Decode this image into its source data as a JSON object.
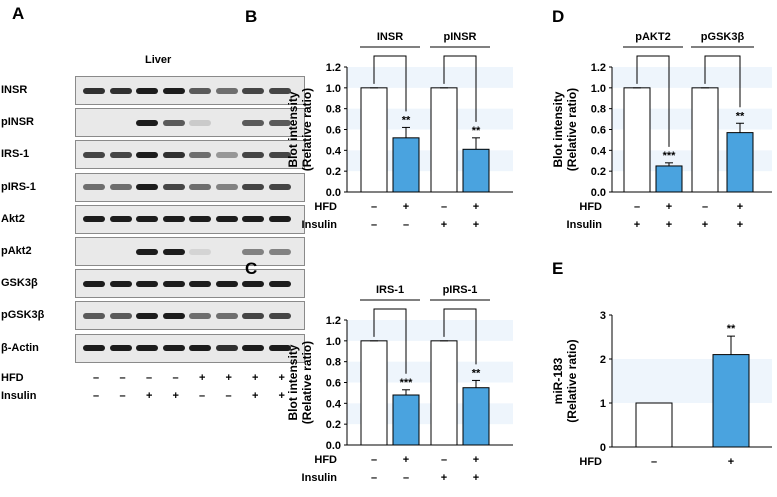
{
  "panelA": {
    "letter": "A",
    "tissue": "Liver",
    "rows": [
      {
        "name": "INSR",
        "levels": [
          0.9,
          0.9,
          1.0,
          1.0,
          0.7,
          0.6,
          0.8,
          0.8
        ]
      },
      {
        "name": "pINSR",
        "levels": [
          0.0,
          0.0,
          1.0,
          0.7,
          0.15,
          0.0,
          0.7,
          0.7
        ]
      },
      {
        "name": "IRS-1",
        "levels": [
          0.8,
          0.8,
          1.0,
          0.9,
          0.6,
          0.4,
          0.8,
          0.8
        ]
      },
      {
        "name": "pIRS-1",
        "levels": [
          0.6,
          0.6,
          1.0,
          0.8,
          0.6,
          0.5,
          0.8,
          0.8
        ]
      },
      {
        "name": "Akt2",
        "levels": [
          1.0,
          1.0,
          1.0,
          1.0,
          1.0,
          1.0,
          1.0,
          1.0
        ]
      },
      {
        "name": "pAkt2",
        "levels": [
          0.0,
          0.0,
          1.0,
          1.0,
          0.1,
          0.0,
          0.5,
          0.5
        ]
      },
      {
        "name": "GSK3β",
        "levels": [
          1.0,
          1.0,
          1.0,
          1.0,
          1.0,
          1.0,
          1.0,
          1.0
        ]
      },
      {
        "name": "pGSK3β",
        "levels": [
          0.7,
          0.7,
          1.0,
          1.0,
          0.6,
          0.6,
          0.8,
          0.8
        ]
      },
      {
        "name": "β-Actin",
        "levels": [
          1.0,
          1.0,
          1.0,
          1.0,
          1.0,
          0.9,
          1.0,
          1.0
        ]
      }
    ],
    "conditions": [
      {
        "name": "HFD",
        "signs": [
          "–",
          "–",
          "–",
          "–",
          "+",
          "+",
          "+",
          "+"
        ]
      },
      {
        "name": "Insulin",
        "signs": [
          "–",
          "–",
          "+",
          "+",
          "–",
          "–",
          "+",
          "+"
        ]
      }
    ]
  },
  "colors": {
    "control": "#ffffff",
    "hfd": "#4aa3df",
    "stripe": "#eef5fc"
  },
  "chart_data": [
    {
      "panel": "B",
      "type": "bar",
      "groups": [
        "INSR",
        "pINSR"
      ],
      "values": [
        1.0,
        0.52,
        1.0,
        0.41
      ],
      "errors": [
        0.0,
        0.1,
        0.0,
        0.11
      ],
      "significance": [
        "",
        "**",
        "",
        "**"
      ],
      "ylabel": [
        "Blot intensity",
        "(Relative ratio)"
      ],
      "ylim": [
        0,
        1.2
      ],
      "yticks": [
        "0.0",
        "0.2",
        "0.4",
        "0.6",
        "0.8",
        "1.0",
        "1.2"
      ],
      "conditions": [
        {
          "name": "HFD",
          "signs": [
            "–",
            "+",
            "–",
            "+"
          ]
        },
        {
          "name": "Insulin",
          "signs": [
            "–",
            "–",
            "+",
            "+"
          ]
        }
      ]
    },
    {
      "panel": "C",
      "type": "bar",
      "groups": [
        "IRS-1",
        "pIRS-1"
      ],
      "values": [
        1.0,
        0.48,
        1.0,
        0.55
      ],
      "errors": [
        0.0,
        0.05,
        0.0,
        0.07
      ],
      "significance": [
        "",
        "***",
        "",
        "**"
      ],
      "ylabel": [
        "Blot intensity",
        "(Relative ratio)"
      ],
      "ylim": [
        0,
        1.2
      ],
      "yticks": [
        "0.0",
        "0.2",
        "0.4",
        "0.6",
        "0.8",
        "1.0",
        "1.2"
      ],
      "conditions": [
        {
          "name": "HFD",
          "signs": [
            "–",
            "+",
            "–",
            "+"
          ]
        },
        {
          "name": "Insulin",
          "signs": [
            "–",
            "–",
            "+",
            "+"
          ]
        }
      ]
    },
    {
      "panel": "D",
      "type": "bar",
      "groups": [
        "pAKT2",
        "pGSK3β"
      ],
      "values": [
        1.0,
        0.25,
        1.0,
        0.57
      ],
      "errors": [
        0.0,
        0.03,
        0.0,
        0.09
      ],
      "significance": [
        "",
        "***",
        "",
        "**"
      ],
      "ylabel": [
        "Blot intensity",
        "(Relative ratio)"
      ],
      "ylim": [
        0,
        1.2
      ],
      "yticks": [
        "0.0",
        "0.2",
        "0.4",
        "0.6",
        "0.8",
        "1.0",
        "1.2"
      ],
      "conditions": [
        {
          "name": "HFD",
          "signs": [
            "–",
            "+",
            "–",
            "+"
          ]
        },
        {
          "name": "Insulin",
          "signs": [
            "+",
            "+",
            "+",
            "+"
          ]
        }
      ]
    },
    {
      "panel": "E",
      "type": "bar",
      "groups": [],
      "values": [
        1.0,
        2.1
      ],
      "errors": [
        0.0,
        0.42
      ],
      "significance": [
        "",
        "**"
      ],
      "ylabel": [
        "miR-183",
        "(Relative ratio)"
      ],
      "ylim": [
        0,
        3
      ],
      "yticks": [
        "0",
        "1",
        "2",
        "3"
      ],
      "conditions": [
        {
          "name": "HFD",
          "signs": [
            "–",
            "+"
          ]
        }
      ]
    }
  ]
}
